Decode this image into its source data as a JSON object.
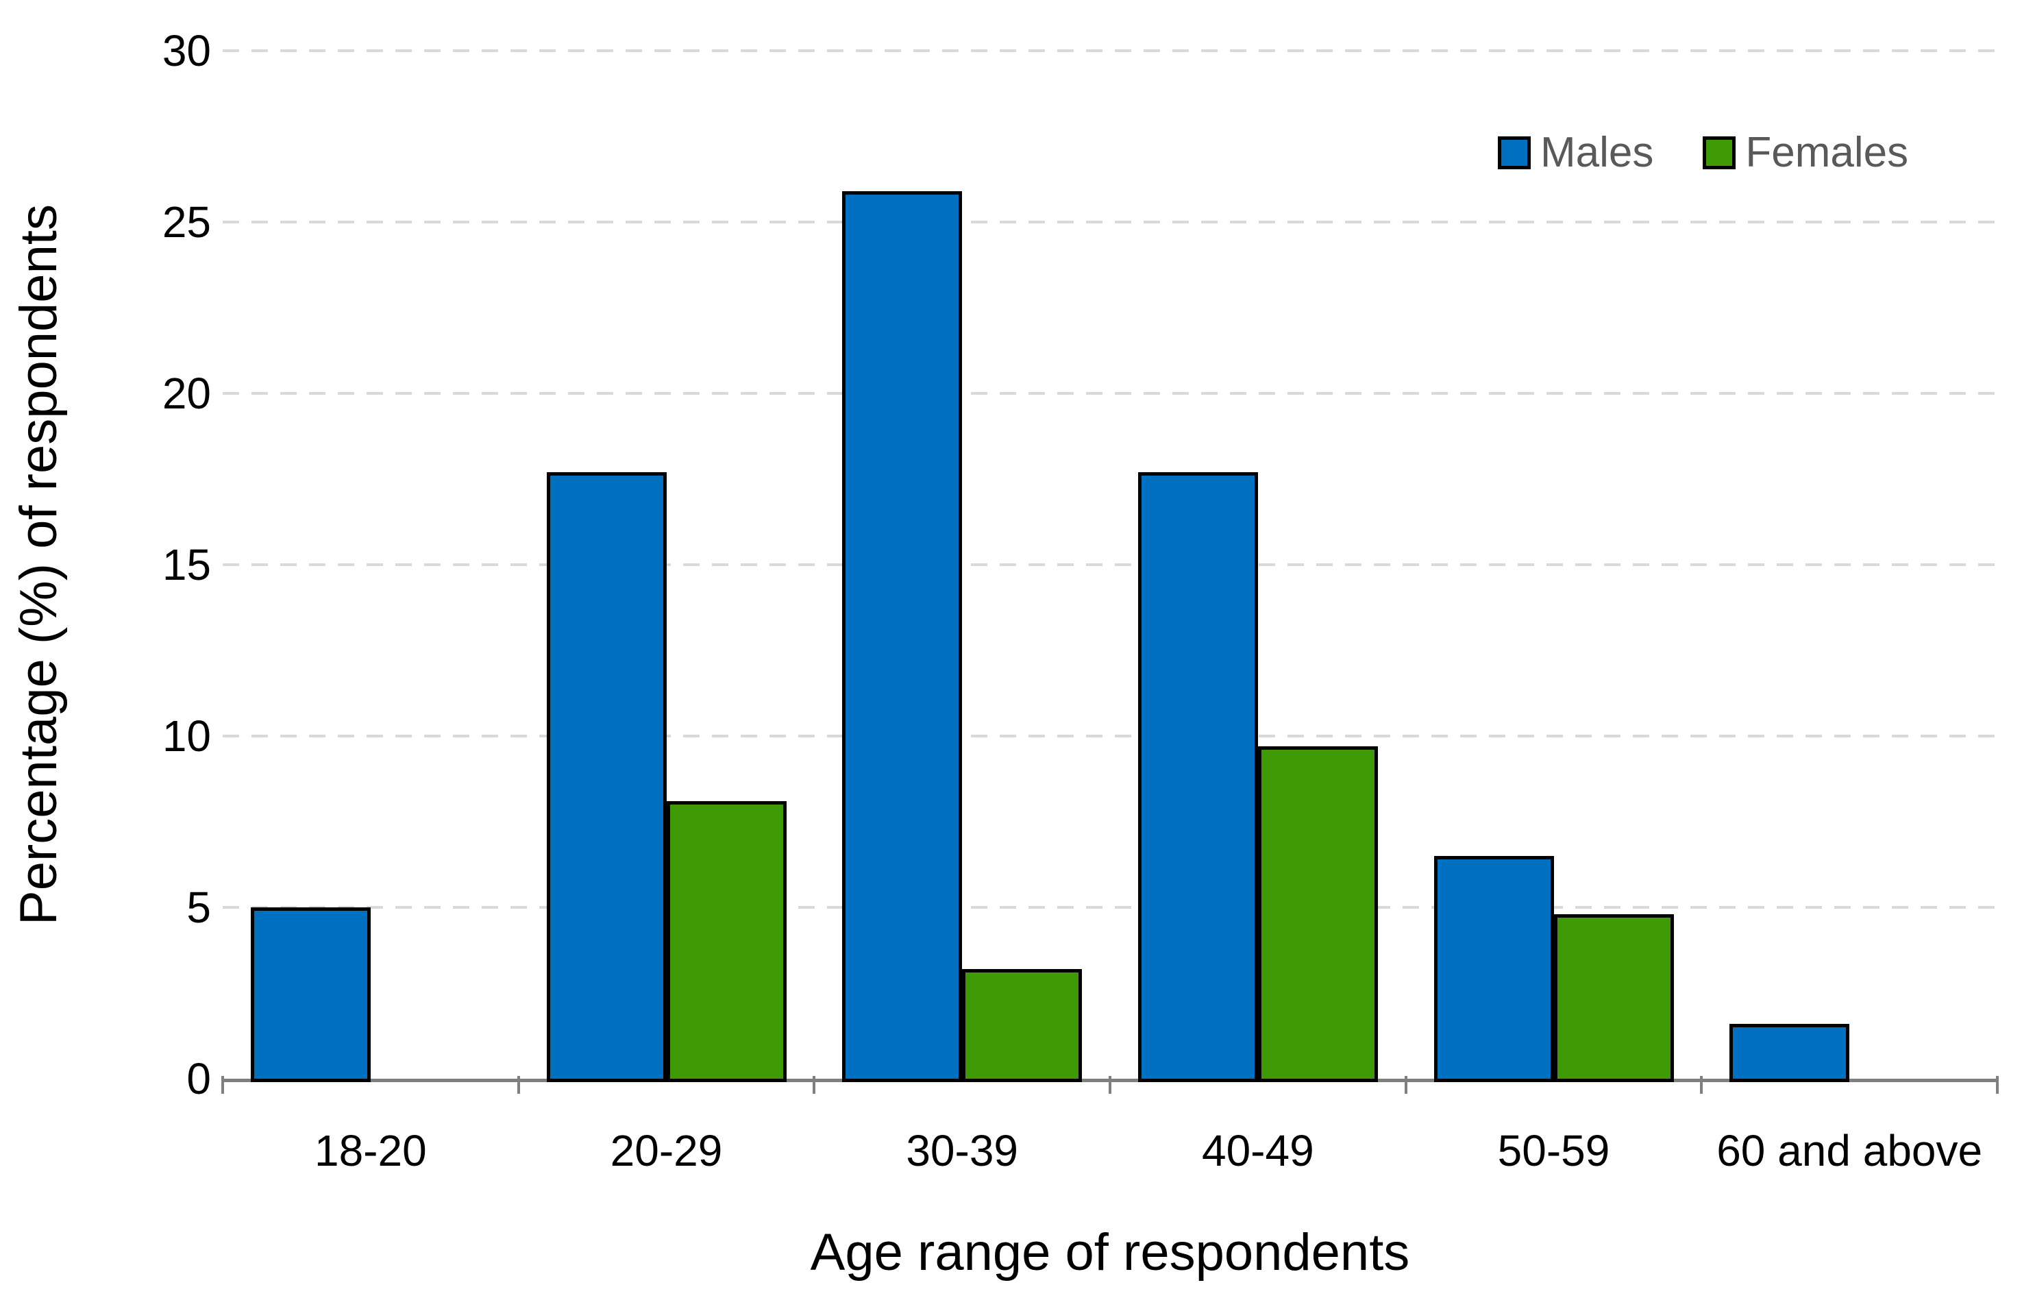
{
  "chart_data": {
    "type": "bar",
    "title": "",
    "categories": [
      "18-20",
      "20-29",
      "30-39",
      "40-49",
      "50-59",
      "60 and above"
    ],
    "series": [
      {
        "name": "Males",
        "color": "#0071C1",
        "values": [
          5.0,
          17.7,
          25.9,
          17.7,
          6.5,
          1.6
        ]
      },
      {
        "name": "Females",
        "color": "#3E9A05",
        "values": [
          0.0,
          8.1,
          3.2,
          9.7,
          4.8,
          0.0
        ]
      }
    ],
    "xlabel": "Age range of respondents",
    "ylabel": "Percentage (%) of respondents",
    "ylim": [
      0,
      30
    ],
    "yticks": [
      0,
      5,
      10,
      15,
      20,
      25,
      30
    ],
    "grid": "horizontal-dashed",
    "legend_position": "top-right",
    "colors": {
      "grid": "#D9D9D9",
      "axis": "#7F7F7F",
      "bar_outline": "#000000",
      "legend_text": "#595959",
      "tick_text": "#000000"
    }
  }
}
